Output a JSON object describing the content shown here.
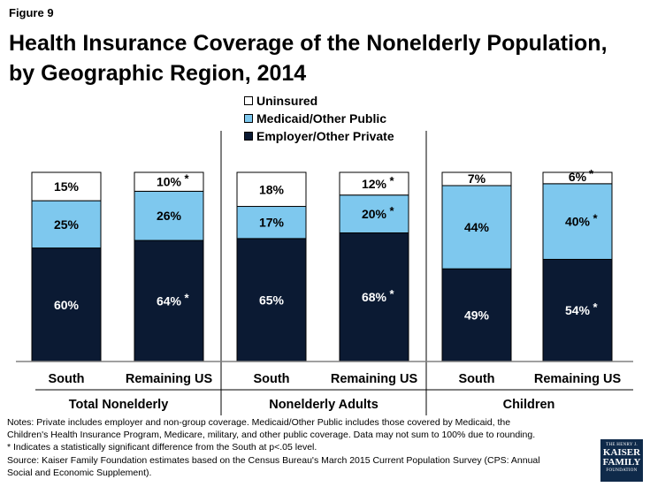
{
  "figure_label": "Figure 9",
  "title_line1": "Health Insurance Coverage of the Nonelderly Population,",
  "title_line2": "by Geographic Region, 2014",
  "colors": {
    "uninsured": "#ffffff",
    "medicaid": "#7ec8ee",
    "employer": "#0b1a33",
    "outline": "#000000"
  },
  "legend": [
    {
      "key": "uninsured",
      "label": "Uninsured"
    },
    {
      "key": "medicaid",
      "label": "Medicaid/Other Public"
    },
    {
      "key": "employer",
      "label": "Employer/Other Private"
    }
  ],
  "chart_data": {
    "type": "bar",
    "stacked": true,
    "title": "Health Insurance Coverage of the Nonelderly Population, by Geographic Region, 2014",
    "ylim": [
      0,
      100
    ],
    "groups": [
      "Total Nonelderly",
      "Nonelderly Adults",
      "Children"
    ],
    "categories": [
      "South",
      "Remaining US",
      "South",
      "Remaining US",
      "South",
      "Remaining US"
    ],
    "series": [
      {
        "name": "Employer/Other Private",
        "key": "employer",
        "values": [
          60,
          64,
          65,
          68,
          49,
          54
        ],
        "labels": [
          "60%",
          "64%",
          "65%",
          "68%",
          "49%",
          "54%"
        ],
        "significant": [
          false,
          true,
          false,
          true,
          false,
          true
        ]
      },
      {
        "name": "Medicaid/Other Public",
        "key": "medicaid",
        "values": [
          25,
          26,
          17,
          20,
          44,
          40
        ],
        "labels": [
          "25%",
          "26%",
          "17%",
          "20%",
          "44%",
          "40%"
        ],
        "significant": [
          false,
          false,
          false,
          true,
          false,
          true
        ]
      },
      {
        "name": "Uninsured",
        "key": "uninsured",
        "values": [
          15,
          10,
          18,
          12,
          7,
          6
        ],
        "labels": [
          "15%",
          "10%",
          "18%",
          "12%",
          "7%",
          "6%"
        ],
        "significant": [
          false,
          true,
          false,
          true,
          false,
          true
        ]
      }
    ],
    "significance_marker": "*"
  },
  "notes": [
    "Notes: Private includes employer and non-group coverage. Medicaid/Other Public includes those covered by Medicaid, the",
    "Children's Health Insurance Program, Medicare, military, and other public coverage. Data may not sum to 100% due to rounding.",
    "* Indicates a statistically significant difference from the South at p<.05 level.",
    "Source: Kaiser Family Foundation estimates based on the Census Bureau's March 2015 Current Population Survey (CPS: Annual",
    "Social and Economic Supplement)."
  ],
  "logo": {
    "top": "THE HENRY J.",
    "line1": "KAISER",
    "line2": "FAMILY",
    "bottom": "FOUNDATION"
  }
}
